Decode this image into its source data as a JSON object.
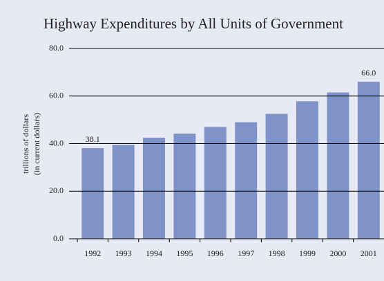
{
  "chart_data": {
    "type": "bar",
    "title": "Highway Expenditures by All Units of Government",
    "y_label": [
      "trillions of dollars",
      "(in current dollars)"
    ],
    "categories": [
      "1992",
      "1993",
      "1994",
      "1995",
      "1996",
      "1997",
      "1998",
      "1999",
      "2000",
      "2001"
    ],
    "values": [
      38.1,
      39.5,
      42.5,
      44.2,
      47.0,
      49.0,
      52.5,
      57.8,
      61.5,
      66.0
    ],
    "value_labels": [
      "38.1",
      null,
      null,
      null,
      null,
      null,
      null,
      null,
      null,
      "66.0"
    ],
    "color": "#7f93c8",
    "ylim": [
      0,
      80
    ],
    "yticks": [
      {
        "value": 0,
        "label": "0.0"
      },
      {
        "value": 20,
        "label": "20.0"
      },
      {
        "value": 40,
        "label": "40.0"
      },
      {
        "value": 60,
        "label": "60.0"
      },
      {
        "value": 80,
        "label": "80.0"
      }
    ],
    "grid": true
  }
}
